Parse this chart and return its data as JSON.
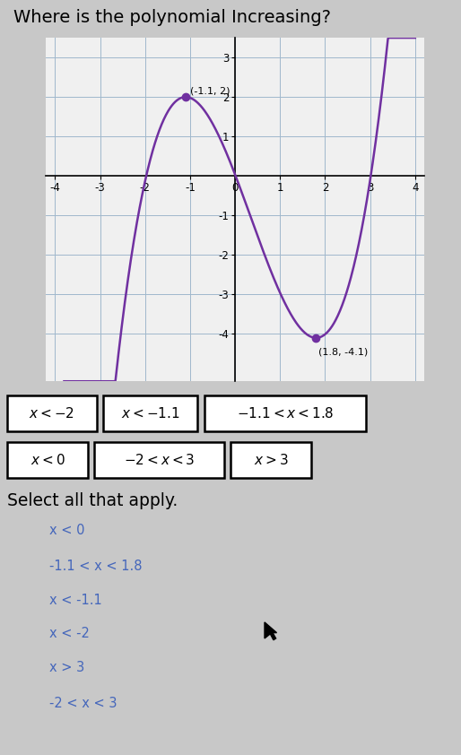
{
  "title": "Where is the polynomial Increasing?",
  "title_fontsize": 14,
  "bg_color": "#c8c8c8",
  "graph_bg_color": "#f0f0f0",
  "curve_color": "#7030a0",
  "local_max": [
    -1.1,
    2.0
  ],
  "local_min": [
    1.8,
    -4.1
  ],
  "x_range": [
    -4.2,
    4.2
  ],
  "y_range": [
    -5.2,
    3.5
  ],
  "x_ticks": [
    -4,
    -3,
    -2,
    -1,
    0,
    1,
    2,
    3,
    4
  ],
  "y_ticks": [
    -4,
    -3,
    -2,
    -1,
    1,
    2,
    3
  ],
  "grid_color": "#a0b8cc",
  "answer_boxes_row1": [
    "x < -2",
    "x < -1.1",
    "-1.1 < x < 1.8"
  ],
  "answer_boxes_row2": [
    "x < 0",
    "-2 < x < 3",
    "x > 3"
  ],
  "select_label": "Select all that apply.",
  "options": [
    "x < 0",
    "-1.1 < x < 1.8",
    "x < -1.1",
    "x < -2",
    "x > 3",
    "-2 < x < 3"
  ],
  "option_color": "#4466bb",
  "lmax_label": "(-1.1, 2)",
  "lmin_label": "(1.8, -4.1)"
}
